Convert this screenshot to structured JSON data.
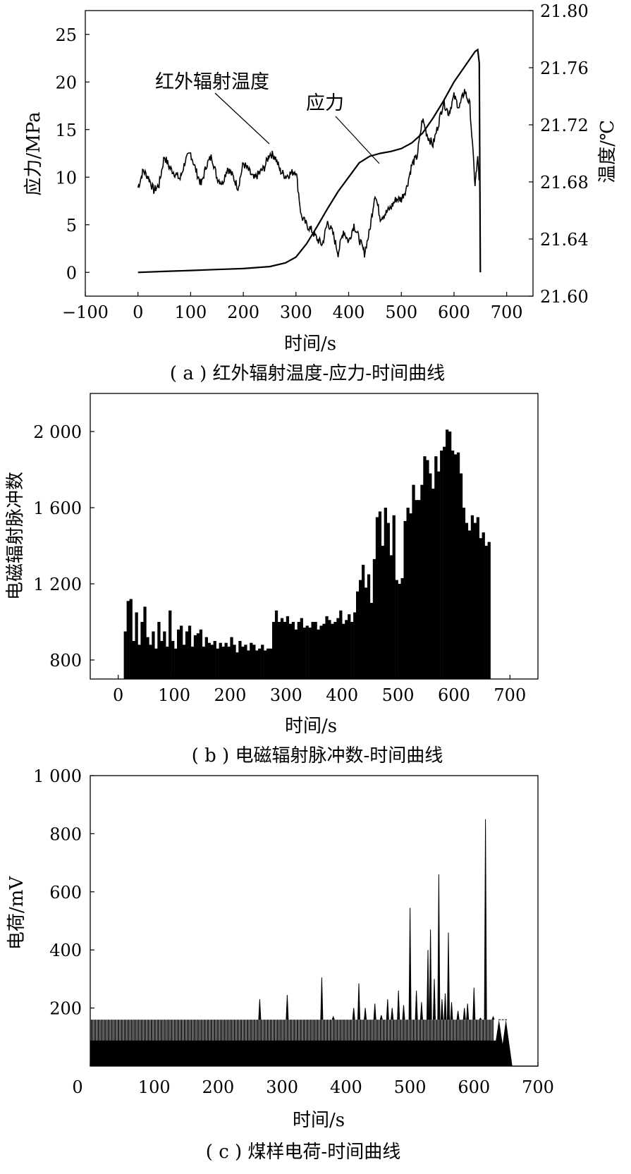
{
  "chart_data": [
    {
      "type": "line",
      "caption": "( a ) 红外辐射温度-应力-时间曲线",
      "xlabel": "时间/s",
      "ylabel": "应力/MPa",
      "y2label": "温度/℃",
      "xlim": [
        -100,
        750
      ],
      "ylim": [
        -2.5,
        27.5
      ],
      "y2lim": [
        21.6,
        21.8
      ],
      "xticks": [
        -100,
        0,
        100,
        200,
        300,
        400,
        500,
        600,
        700
      ],
      "xtick_labels": [
        "−100",
        "0",
        "100",
        "200",
        "300",
        "400",
        "500",
        "600",
        "700"
      ],
      "yticks": [
        0,
        5,
        10,
        15,
        20,
        25
      ],
      "y2ticks": [
        21.6,
        21.64,
        21.68,
        21.72,
        21.76,
        21.8
      ],
      "y2tick_labels": [
        "21.60",
        "21.64",
        "21.68",
        "21.72",
        "21.76",
        "21.80"
      ],
      "annotations": [
        "红外辐射温度",
        "应力"
      ],
      "series": [
        {
          "name": "应力",
          "axis": "left",
          "x": [
            0,
            50,
            100,
            150,
            200,
            250,
            280,
            300,
            320,
            340,
            360,
            380,
            400,
            420,
            440,
            460,
            480,
            500,
            520,
            540,
            560,
            580,
            600,
            620,
            640,
            645,
            648,
            650
          ],
          "y": [
            0.0,
            0.1,
            0.2,
            0.3,
            0.4,
            0.6,
            1.0,
            1.6,
            3.0,
            4.8,
            6.7,
            8.5,
            10.0,
            11.5,
            12.2,
            12.5,
            12.7,
            13.0,
            13.6,
            14.6,
            16.2,
            18.0,
            20.0,
            21.6,
            23.2,
            23.4,
            22.0,
            0.0
          ]
        },
        {
          "name": "红外辐射温度",
          "axis": "right",
          "x": [
            0,
            10,
            20,
            30,
            40,
            50,
            60,
            70,
            80,
            90,
            100,
            110,
            120,
            130,
            140,
            150,
            160,
            170,
            180,
            190,
            200,
            210,
            220,
            230,
            240,
            250,
            260,
            270,
            280,
            290,
            300,
            310,
            320,
            330,
            340,
            350,
            360,
            370,
            380,
            390,
            400,
            410,
            420,
            430,
            440,
            450,
            460,
            470,
            480,
            490,
            500,
            510,
            520,
            530,
            540,
            550,
            560,
            570,
            580,
            590,
            600,
            610,
            620,
            630,
            640,
            645,
            650
          ],
          "y": [
            21.676,
            21.688,
            21.683,
            21.674,
            21.678,
            21.698,
            21.69,
            21.686,
            21.682,
            21.695,
            21.7,
            21.688,
            21.678,
            21.692,
            21.698,
            21.683,
            21.679,
            21.69,
            21.684,
            21.676,
            21.693,
            21.688,
            21.682,
            21.686,
            21.69,
            21.7,
            21.698,
            21.688,
            21.684,
            21.686,
            21.688,
            21.656,
            21.65,
            21.646,
            21.64,
            21.636,
            21.652,
            21.644,
            21.63,
            21.646,
            21.638,
            21.65,
            21.64,
            21.63,
            21.646,
            21.672,
            21.655,
            21.658,
            21.662,
            21.668,
            21.668,
            21.676,
            21.692,
            21.698,
            21.724,
            21.712,
            21.706,
            21.72,
            21.736,
            21.728,
            21.74,
            21.732,
            21.744,
            21.734,
            21.678,
            21.696,
            21.672
          ]
        }
      ]
    },
    {
      "type": "bar",
      "caption": "( b ) 电磁辐射脉冲数-时间曲线",
      "xlabel": "时间/s",
      "ylabel": "电磁辐射脉冲数",
      "xlim": [
        -50,
        750
      ],
      "ylim": [
        700,
        2200
      ],
      "xticks": [
        0,
        100,
        200,
        300,
        400,
        500,
        600,
        700
      ],
      "yticks": [
        800,
        1200,
        1600,
        2000
      ],
      "ytick_labels": [
        "800",
        "1 200",
        "1 600",
        "2 000"
      ],
      "bar_width": 5,
      "x": [
        10,
        15,
        20,
        25,
        30,
        35,
        40,
        45,
        50,
        55,
        60,
        65,
        70,
        75,
        80,
        85,
        90,
        95,
        100,
        105,
        110,
        115,
        120,
        125,
        130,
        135,
        140,
        145,
        150,
        155,
        160,
        165,
        170,
        175,
        180,
        185,
        190,
        195,
        200,
        205,
        210,
        215,
        220,
        225,
        230,
        235,
        240,
        245,
        250,
        255,
        260,
        265,
        270,
        275,
        280,
        285,
        290,
        295,
        300,
        305,
        310,
        315,
        320,
        325,
        330,
        335,
        340,
        345,
        350,
        355,
        360,
        365,
        370,
        375,
        380,
        385,
        390,
        395,
        400,
        405,
        410,
        415,
        420,
        425,
        430,
        435,
        440,
        445,
        450,
        455,
        460,
        465,
        470,
        475,
        480,
        485,
        490,
        495,
        500,
        505,
        510,
        515,
        520,
        525,
        530,
        535,
        540,
        545,
        550,
        555,
        560,
        565,
        570,
        575,
        580,
        585,
        590,
        595,
        600,
        605,
        610,
        615,
        620,
        625,
        630,
        635,
        640,
        645,
        650,
        655,
        660
      ],
      "values": [
        950,
        1110,
        1120,
        900,
        1050,
        880,
        1000,
        1080,
        920,
        880,
        950,
        860,
        1000,
        900,
        950,
        870,
        1060,
        900,
        860,
        960,
        980,
        880,
        950,
        980,
        870,
        930,
        940,
        960,
        870,
        920,
        890,
        880,
        900,
        860,
        890,
        870,
        890,
        870,
        920,
        880,
        840,
        900,
        870,
        880,
        850,
        890,
        880,
        850,
        860,
        880,
        850,
        860,
        860,
        1000,
        1060,
        1000,
        1020,
        1000,
        1030,
        990,
        1000,
        960,
        1000,
        1020,
        970,
        980,
        970,
        1000,
        1000,
        960,
        980,
        990,
        1030,
        1010,
        990,
        1000,
        1020,
        1060,
        990,
        1010,
        1040,
        1000,
        1050,
        1160,
        1220,
        1300,
        1180,
        1250,
        1100,
        1330,
        1550,
        1580,
        1400,
        1600,
        1520,
        1350,
        1560,
        1220,
        1200,
        1230,
        1530,
        1600,
        1570,
        1720,
        1640,
        1640,
        1720,
        1870,
        1850,
        1780,
        1700,
        1870,
        1790,
        1900,
        1920,
        2010,
        2000,
        1900,
        1880,
        1890,
        1780,
        1600,
        1520,
        1480,
        1560,
        1520,
        1550,
        1440,
        1470,
        1400,
        1420
      ],
      "ylim_note": ""
    },
    {
      "type": "line",
      "caption": "( c ) 煤样电荷-时间曲线",
      "xlabel": "时间/s",
      "ylabel": "电荷/mV",
      "xlim": [
        0,
        700
      ],
      "ylim": [
        0,
        1000
      ],
      "xticks": [
        0,
        100,
        200,
        300,
        400,
        500,
        600,
        700
      ],
      "yticks": [
        200,
        400,
        600,
        800,
        1000
      ],
      "ytick_labels": [
        "200",
        "400",
        "600",
        "800",
        "1 000"
      ],
      "baseline_band": [
        0,
        160
      ],
      "spike_x": [
        265,
        308,
        362,
        380,
        412,
        420,
        430,
        445,
        455,
        465,
        472,
        482,
        490,
        500,
        510,
        518,
        528,
        532,
        538,
        545,
        550,
        555,
        560,
        565,
        575,
        585,
        590,
        600,
        610,
        618,
        630,
        640,
        645,
        650
      ],
      "spike_y": [
        230,
        245,
        305,
        170,
        200,
        285,
        200,
        215,
        175,
        230,
        200,
        260,
        210,
        545,
        260,
        220,
        400,
        470,
        300,
        660,
        230,
        250,
        460,
        220,
        190,
        200,
        215,
        270,
        165,
        850,
        170,
        160,
        160,
        160
      ]
    }
  ]
}
